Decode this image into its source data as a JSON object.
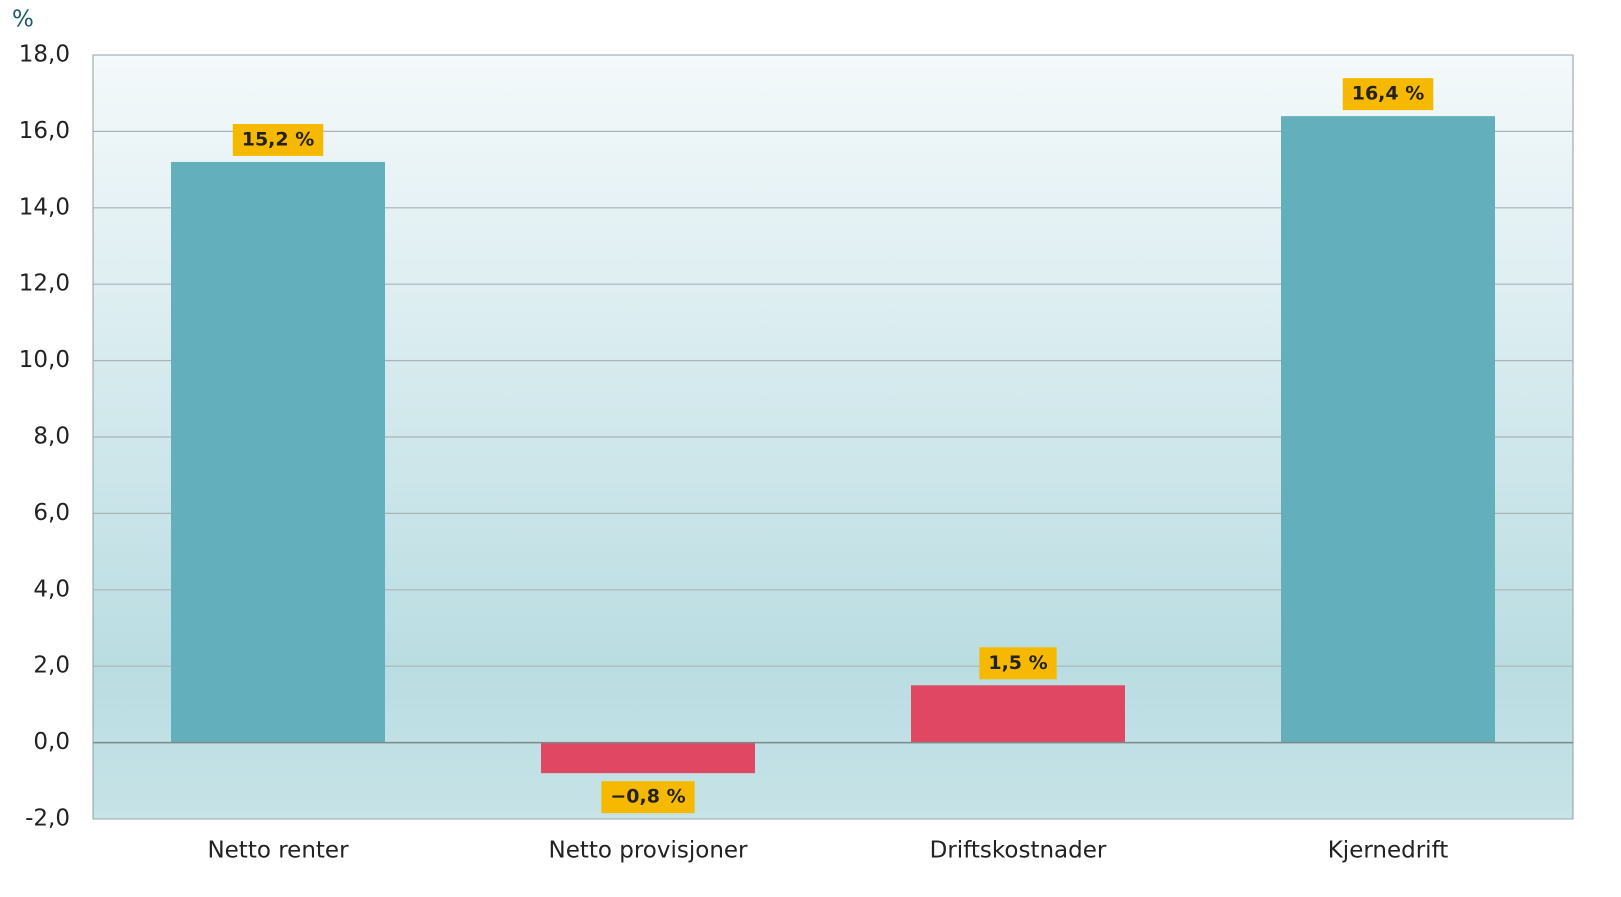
{
  "chart_data": {
    "type": "bar",
    "y_unit_label": "%",
    "categories": [
      "Netto renter",
      "Netto provisjoner",
      "Driftskostnader",
      "Kjernedrift"
    ],
    "values": [
      15.2,
      -0.8,
      1.5,
      16.4
    ],
    "value_labels": [
      "15,2 %",
      "−0,8 %",
      "1,5 %",
      "16,4 %"
    ],
    "colors": [
      "#63b0bc",
      "#e04763",
      "#e04763",
      "#63b0bc"
    ],
    "label_box_color": "#f7b900",
    "ylim": [
      -2,
      18
    ],
    "yticks": [
      {
        "value": -2,
        "label": "-2,0"
      },
      {
        "value": 0,
        "label": "0,0"
      },
      {
        "value": 2,
        "label": "2,0"
      },
      {
        "value": 4,
        "label": "4,0"
      },
      {
        "value": 6,
        "label": "6,0"
      },
      {
        "value": 8,
        "label": "8,0"
      },
      {
        "value": 10,
        "label": "10,0"
      },
      {
        "value": 12,
        "label": "12,0"
      },
      {
        "value": 14,
        "label": "14,0"
      },
      {
        "value": 16,
        "label": "16,0"
      },
      {
        "value": 18,
        "label": "18,0"
      }
    ],
    "grid": true
  }
}
